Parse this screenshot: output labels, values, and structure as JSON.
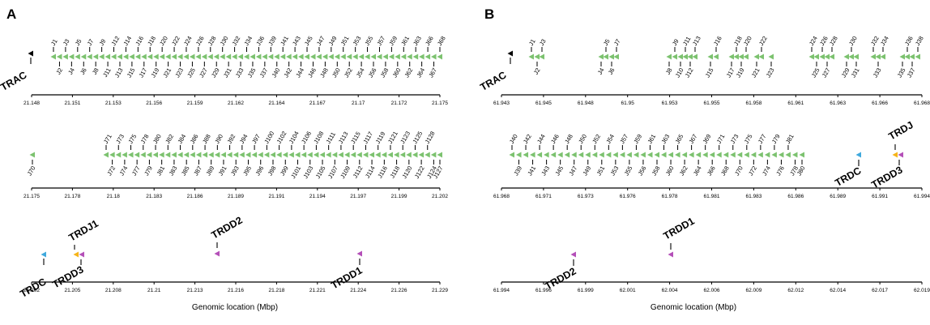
{
  "colors": {
    "jgene": "#7cc26f",
    "trac": "#000000",
    "trdc": "#3fa9dd",
    "trdj": "#f5b41a",
    "trdd": "#b44fb8"
  },
  "panels": [
    {
      "letter": "A",
      "axis_label": "Genomic location (Mbp)",
      "rows": [
        {
          "ticks": [
            "21.148",
            "21.151",
            "21.153",
            "21.156",
            "21.159",
            "21.162",
            "21.164",
            "21.167",
            "21.17",
            "21.172",
            "21.175"
          ],
          "markers": [
            {
              "label": "TRAC",
              "color": "trac",
              "dir": "left"
            }
          ],
          "genes_up": [
            "J1",
            "J3",
            "J5",
            "J7",
            "J9",
            "J12",
            "J14",
            "J16",
            "J18",
            "J20",
            "J22",
            "J24",
            "J26",
            "J28",
            "J30",
            "J32",
            "J34",
            "J36",
            "J39",
            "J41",
            "J43",
            "J45",
            "J47",
            "J49",
            "J51",
            "J53",
            "J55",
            "J57",
            "J59",
            "J61",
            "J63",
            "J66",
            "J68"
          ],
          "genes_down": [
            "J2",
            "J4",
            "J6",
            "J8",
            "J11",
            "J13",
            "J15",
            "J17",
            "J19",
            "J21",
            "J23",
            "J25",
            "J27",
            "J29",
            "J31",
            "J33",
            "J35",
            "J37",
            "J40",
            "J42",
            "J44",
            "J46",
            "J48",
            "J50",
            "J52",
            "J54",
            "J56",
            "J58",
            "J60",
            "J62",
            "J64",
            "J67"
          ]
        },
        {
          "ticks": [
            "21.175",
            "21.178",
            "21.18",
            "21.183",
            "21.186",
            "21.189",
            "21.191",
            "21.194",
            "21.197",
            "21.199",
            "21.202"
          ],
          "markers": [],
          "genes_up": [
            "J71",
            "J73",
            "J75",
            "J78",
            "J80",
            "J82",
            "J84",
            "J86",
            "J88",
            "J90",
            "J92",
            "J94",
            "J97",
            "J100",
            "J102",
            "J104",
            "J106",
            "J108",
            "J111",
            "J113",
            "J115",
            "J117",
            "J119",
            "J121",
            "J123",
            "J125",
            "J128"
          ],
          "genes_down": [
            "J70",
            "J72",
            "J74",
            "J77",
            "J79",
            "J81",
            "J83",
            "J85",
            "J87",
            "J89",
            "J91",
            "J93",
            "J95",
            "J96",
            "J98",
            "J99",
            "J101",
            "J103",
            "J105",
            "J107",
            "J109",
            "J112",
            "J114",
            "J116",
            "J118",
            "J120",
            "J122",
            "J124",
            "J127"
          ]
        },
        {
          "ticks": [
            "21.202",
            "21.205",
            "21.208",
            "21.21",
            "21.213",
            "21.216",
            "21.218",
            "21.221",
            "21.224",
            "21.226",
            "21.229"
          ],
          "markers": [
            {
              "label": "TRDC",
              "color": "trdc",
              "dir": "left"
            },
            {
              "label": "TRDJ1",
              "color": "trdj",
              "dir": "left"
            },
            {
              "label": "TRDD3",
              "color": "trdd",
              "dir": "left"
            },
            {
              "label": "TRDD2",
              "color": "trdd",
              "dir": "left"
            },
            {
              "label": "TRDD1",
              "color": "trdd",
              "dir": "left"
            }
          ],
          "genes_up": [],
          "genes_down": []
        }
      ]
    },
    {
      "letter": "B",
      "axis_label": "Genomic location (Mbp)",
      "rows": [
        {
          "ticks": [
            "61.943",
            "61.945",
            "61.948",
            "61.95",
            "61.953",
            "61.955",
            "61.958",
            "61.961",
            "61.963",
            "61.966",
            "61.968"
          ],
          "markers": [
            {
              "label": "TRAC",
              "color": "trac",
              "dir": "left"
            }
          ],
          "genes_up": [
            "J1",
            "J3",
            "J5",
            "J7",
            "J9",
            "J11",
            "J13",
            "J16",
            "J18",
            "J20",
            "J22",
            "J24",
            "J26",
            "J28",
            "J30",
            "J32",
            "J34",
            "J36",
            "J38"
          ],
          "genes_down": [
            "J2",
            "J4",
            "J6",
            "J8",
            "J10",
            "J12",
            "J15",
            "J17",
            "J19",
            "J21",
            "J23",
            "J25",
            "J27",
            "J29",
            "J31",
            "J33",
            "J35",
            "J37"
          ]
        },
        {
          "ticks": [
            "61.968",
            "61.971",
            "61.973",
            "61.976",
            "61.978",
            "61.981",
            "61.983",
            "61.986",
            "61.989",
            "61.991",
            "61.994"
          ],
          "markers": [
            {
              "label": "TRDC",
              "color": "trdc",
              "dir": "left"
            },
            {
              "label": "TRDJ",
              "color": "trdj",
              "dir": "left"
            },
            {
              "label": "TRDD3",
              "color": "trdd",
              "dir": "left"
            }
          ],
          "genes_up": [
            "J40",
            "J42",
            "J44",
            "J46",
            "J48",
            "J50",
            "J52",
            "J54",
            "J57",
            "J59",
            "J61",
            "J63",
            "J65",
            "J67",
            "J69",
            "J71",
            "J73",
            "J75",
            "J77",
            "J79",
            "J81"
          ],
          "genes_down": [
            "J39",
            "J41",
            "J43",
            "J45",
            "J47",
            "J49",
            "J51",
            "J53",
            "J55",
            "J56",
            "J58",
            "J60",
            "J62",
            "J64",
            "J66",
            "J68",
            "J70",
            "J72",
            "J74",
            "J76",
            "J78",
            "J80"
          ]
        },
        {
          "ticks": [
            "61.994",
            "61.996",
            "61.999",
            "62.001",
            "62.004",
            "62.006",
            "62.009",
            "62.012",
            "62.014",
            "62.017",
            "62.019"
          ],
          "markers": [
            {
              "label": "TRDD2",
              "color": "trdd",
              "dir": "left"
            },
            {
              "label": "TRDD1",
              "color": "trdd",
              "dir": "left"
            }
          ],
          "genes_up": [],
          "genes_down": []
        }
      ]
    }
  ]
}
